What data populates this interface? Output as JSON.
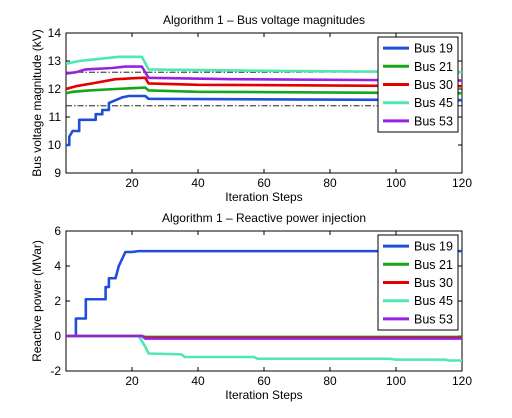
{
  "chart_data": [
    {
      "type": "line",
      "title": "Algorithm 1 – Bus voltage magnitudes",
      "xlabel": "Iteration Steps",
      "ylabel": "Bus voltage magnitude (kV)",
      "xlim": [
        0,
        120
      ],
      "ylim": [
        9,
        14
      ],
      "xticks": [
        20,
        40,
        60,
        80,
        100,
        120
      ],
      "yticks": [
        9,
        10,
        11,
        12,
        13,
        14
      ],
      "grid": false,
      "legend_position": "top-right",
      "reference_lines": [
        {
          "style": "dash-dot",
          "y": 12.6
        },
        {
          "style": "dash-dot",
          "y": 11.4
        }
      ],
      "series": [
        {
          "name": "Bus 19",
          "color": "#1f4fd8",
          "points": [
            [
              0,
              10.0
            ],
            [
              1,
              10.0
            ],
            [
              1,
              10.3
            ],
            [
              2,
              10.5
            ],
            [
              4,
              10.5
            ],
            [
              4,
              10.9
            ],
            [
              6,
              10.9
            ],
            [
              9,
              10.9
            ],
            [
              9,
              11.1
            ],
            [
              11,
              11.1
            ],
            [
              11,
              11.25
            ],
            [
              13,
              11.25
            ],
            [
              13,
              11.5
            ],
            [
              15,
              11.6
            ],
            [
              17,
              11.7
            ],
            [
              19,
              11.75
            ],
            [
              24,
              11.75
            ],
            [
              25,
              11.65
            ],
            [
              120,
              11.6
            ]
          ]
        },
        {
          "name": "Bus 21",
          "color": "#19a519",
          "points": [
            [
              0,
              11.85
            ],
            [
              2,
              11.9
            ],
            [
              7,
              11.95
            ],
            [
              15,
              12.0
            ],
            [
              24,
              12.05
            ],
            [
              25,
              11.95
            ],
            [
              40,
              11.9
            ],
            [
              120,
              11.85
            ]
          ]
        },
        {
          "name": "Bus 30",
          "color": "#e50000",
          "points": [
            [
              0,
              12.0
            ],
            [
              3,
              12.1
            ],
            [
              8,
              12.2
            ],
            [
              15,
              12.35
            ],
            [
              23,
              12.4
            ],
            [
              24,
              12.4
            ],
            [
              25,
              12.2
            ],
            [
              40,
              12.15
            ],
            [
              120,
              12.1
            ]
          ]
        },
        {
          "name": "Bus 45",
          "color": "#4ee8b0",
          "points": [
            [
              0,
              12.9
            ],
            [
              2,
              12.95
            ],
            [
              4,
              13.0
            ],
            [
              12,
              13.1
            ],
            [
              16,
              13.15
            ],
            [
              23,
              13.15
            ],
            [
              25,
              12.7
            ],
            [
              60,
              12.65
            ],
            [
              120,
              12.6
            ]
          ]
        },
        {
          "name": "Bus 53",
          "color": "#9a20e0",
          "points": [
            [
              0,
              12.55
            ],
            [
              3,
              12.6
            ],
            [
              6,
              12.7
            ],
            [
              14,
              12.75
            ],
            [
              18,
              12.8
            ],
            [
              23,
              12.8
            ],
            [
              25,
              12.4
            ],
            [
              50,
              12.35
            ],
            [
              120,
              12.3
            ]
          ]
        }
      ]
    },
    {
      "type": "line",
      "title": "Algorithm 1 – Reactive power injection",
      "xlabel": "Iteration Steps",
      "ylabel": "Reactive power (MVar)",
      "xlim": [
        0,
        120
      ],
      "ylim": [
        -2,
        6
      ],
      "xticks": [
        20,
        40,
        60,
        80,
        100,
        120
      ],
      "yticks": [
        -2,
        0,
        2,
        4,
        6
      ],
      "grid": false,
      "legend_position": "top-right",
      "series": [
        {
          "name": "Bus 19",
          "color": "#1f4fd8",
          "points": [
            [
              0,
              0
            ],
            [
              3,
              0
            ],
            [
              3,
              1.0
            ],
            [
              6,
              1.0
            ],
            [
              6,
              2.1
            ],
            [
              10,
              2.1
            ],
            [
              12,
              2.1
            ],
            [
              12,
              2.8
            ],
            [
              13,
              2.8
            ],
            [
              13,
              3.3
            ],
            [
              15,
              3.3
            ],
            [
              16,
              4.0
            ],
            [
              17,
              4.4
            ],
            [
              18,
              4.8
            ],
            [
              20,
              4.8
            ],
            [
              22,
              4.85
            ],
            [
              120,
              4.85
            ]
          ]
        },
        {
          "name": "Bus 21",
          "color": "#19a519",
          "points": [
            [
              0,
              0
            ],
            [
              23,
              0
            ],
            [
              24,
              -0.05
            ],
            [
              120,
              -0.05
            ]
          ]
        },
        {
          "name": "Bus 30",
          "color": "#e50000",
          "points": [
            [
              0,
              0
            ],
            [
              23,
              0
            ],
            [
              24,
              -0.1
            ],
            [
              120,
              -0.1
            ]
          ]
        },
        {
          "name": "Bus 45",
          "color": "#4ee8b0",
          "points": [
            [
              0,
              0
            ],
            [
              22,
              0
            ],
            [
              24,
              -0.6
            ],
            [
              25,
              -1.0
            ],
            [
              35,
              -1.05
            ],
            [
              36,
              -1.2
            ],
            [
              57,
              -1.2
            ],
            [
              58,
              -1.3
            ],
            [
              98,
              -1.3
            ],
            [
              100,
              -1.35
            ],
            [
              115,
              -1.35
            ],
            [
              116,
              -1.4
            ],
            [
              120,
              -1.4
            ]
          ]
        },
        {
          "name": "Bus 53",
          "color": "#9a20e0",
          "points": [
            [
              0,
              0
            ],
            [
              23,
              0
            ],
            [
              24,
              -0.15
            ],
            [
              120,
              -0.15
            ]
          ]
        }
      ]
    }
  ]
}
